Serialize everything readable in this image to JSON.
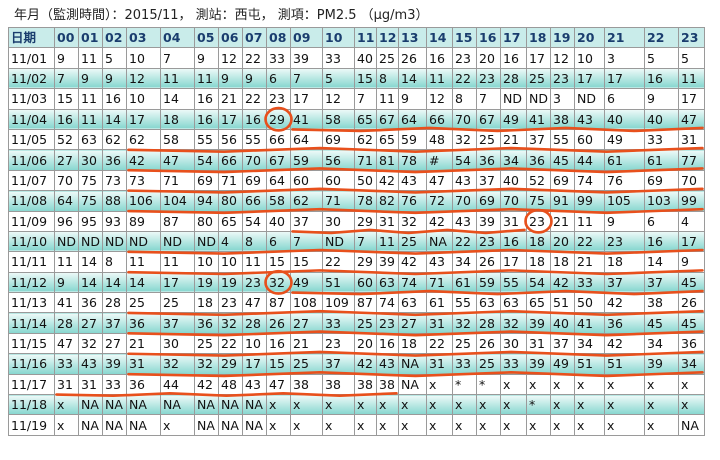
{
  "header": {
    "title": "年月（監測時間）：2015/11， 測站：西屯， 測項：PM2.5 （μg/m3）"
  },
  "table": {
    "columns": [
      "日期",
      "00",
      "01",
      "02",
      "03",
      "04",
      "05",
      "06",
      "07",
      "08",
      "09",
      "10",
      "11",
      "12",
      "13",
      "14",
      "15",
      "16",
      "17",
      "18",
      "19",
      "20",
      "21",
      "22",
      "23"
    ],
    "rows": [
      [
        "11/01",
        "9",
        "11",
        "5",
        "10",
        "7",
        "9",
        "12",
        "22",
        "33",
        "39",
        "33",
        "40",
        "25",
        "26",
        "16",
        "23",
        "20",
        "16",
        "17",
        "12",
        "10",
        "3",
        "5",
        "5"
      ],
      [
        "11/02",
        "7",
        "9",
        "9",
        "12",
        "11",
        "11",
        "9",
        "9",
        "6",
        "7",
        "5",
        "15",
        "8",
        "14",
        "11",
        "22",
        "23",
        "28",
        "25",
        "23",
        "17",
        "17",
        "16",
        "11"
      ],
      [
        "11/03",
        "15",
        "11",
        "16",
        "10",
        "14",
        "16",
        "21",
        "22",
        "23",
        "17",
        "12",
        "7",
        "11",
        "9",
        "12",
        "8",
        "7",
        "ND",
        "ND",
        "3",
        "ND",
        "6",
        "9",
        "17"
      ],
      [
        "11/04",
        "16",
        "11",
        "14",
        "17",
        "18",
        "16",
        "17",
        "16",
        "29",
        "41",
        "58",
        "65",
        "67",
        "64",
        "66",
        "70",
        "67",
        "49",
        "41",
        "38",
        "43",
        "40",
        "40",
        "47"
      ],
      [
        "11/05",
        "52",
        "63",
        "62",
        "62",
        "58",
        "55",
        "56",
        "55",
        "66",
        "64",
        "69",
        "62",
        "65",
        "59",
        "48",
        "32",
        "25",
        "21",
        "37",
        "55",
        "60",
        "49",
        "33",
        "31"
      ],
      [
        "11/06",
        "27",
        "30",
        "36",
        "42",
        "47",
        "54",
        "66",
        "70",
        "67",
        "59",
        "56",
        "71",
        "81",
        "78",
        "#",
        "54",
        "36",
        "34",
        "36",
        "45",
        "44",
        "61",
        "61",
        "77"
      ],
      [
        "11/07",
        "70",
        "75",
        "73",
        "73",
        "71",
        "69",
        "71",
        "69",
        "64",
        "60",
        "60",
        "50",
        "42",
        "43",
        "47",
        "43",
        "37",
        "40",
        "52",
        "69",
        "74",
        "76",
        "69",
        "70"
      ],
      [
        "11/08",
        "64",
        "75",
        "88",
        "106",
        "104",
        "94",
        "80",
        "66",
        "58",
        "62",
        "71",
        "78",
        "82",
        "76",
        "72",
        "70",
        "69",
        "70",
        "75",
        "91",
        "99",
        "105",
        "103",
        "99"
      ],
      [
        "11/09",
        "96",
        "95",
        "93",
        "89",
        "87",
        "80",
        "65",
        "54",
        "40",
        "37",
        "30",
        "29",
        "31",
        "32",
        "42",
        "43",
        "39",
        "31",
        "23",
        "21",
        "11",
        "9",
        "6",
        "4"
      ],
      [
        "11/10",
        "ND",
        "ND",
        "ND",
        "ND",
        "ND",
        "ND",
        "4",
        "8",
        "6",
        "7",
        "ND",
        "7",
        "11",
        "25",
        "NA",
        "22",
        "23",
        "16",
        "18",
        "20",
        "22",
        "23",
        "16",
        "17"
      ],
      [
        "11/11",
        "11",
        "14",
        "8",
        "11",
        "11",
        "10",
        "10",
        "11",
        "15",
        "15",
        "22",
        "29",
        "39",
        "42",
        "43",
        "34",
        "26",
        "17",
        "18",
        "18",
        "21",
        "18",
        "14",
        "9"
      ],
      [
        "11/12",
        "9",
        "14",
        "14",
        "14",
        "17",
        "19",
        "19",
        "23",
        "32",
        "49",
        "51",
        "60",
        "63",
        "74",
        "71",
        "61",
        "59",
        "55",
        "54",
        "42",
        "33",
        "37",
        "37",
        "45"
      ],
      [
        "11/13",
        "41",
        "36",
        "28",
        "25",
        "25",
        "18",
        "23",
        "47",
        "87",
        "108",
        "109",
        "87",
        "74",
        "63",
        "61",
        "55",
        "63",
        "63",
        "65",
        "51",
        "50",
        "42",
        "38",
        "26"
      ],
      [
        "11/14",
        "28",
        "27",
        "37",
        "36",
        "37",
        "36",
        "32",
        "28",
        "26",
        "27",
        "33",
        "25",
        "23",
        "27",
        "31",
        "32",
        "28",
        "32",
        "39",
        "40",
        "41",
        "36",
        "45",
        "45"
      ],
      [
        "11/15",
        "47",
        "32",
        "27",
        "21",
        "30",
        "25",
        "22",
        "10",
        "16",
        "21",
        "23",
        "20",
        "16",
        "18",
        "22",
        "25",
        "26",
        "30",
        "31",
        "37",
        "34",
        "42",
        "34",
        "36"
      ],
      [
        "11/16",
        "33",
        "43",
        "39",
        "31",
        "32",
        "32",
        "29",
        "17",
        "15",
        "25",
        "37",
        "42",
        "43",
        "NA",
        "31",
        "33",
        "25",
        "33",
        "39",
        "49",
        "51",
        "51",
        "39",
        "34"
      ],
      [
        "11/17",
        "31",
        "31",
        "33",
        "36",
        "44",
        "42",
        "48",
        "43",
        "47",
        "38",
        "38",
        "38",
        "38",
        "NA",
        "x",
        "*",
        "*",
        "x",
        "x",
        "x",
        "x",
        "x",
        "x",
        "x"
      ],
      [
        "11/18",
        "x",
        "NA",
        "NA",
        "NA",
        "NA",
        "NA",
        "NA",
        "NA",
        "x",
        "x",
        "x",
        "x",
        "x",
        "x",
        "x",
        "x",
        "x",
        "x",
        "*",
        "x",
        "x",
        "x",
        "x",
        "x"
      ],
      [
        "11/19",
        "x",
        "NA",
        "NA",
        "NA",
        "x",
        "NA",
        "NA",
        "NA",
        "x",
        "x",
        "x",
        "x",
        "x",
        "x",
        "x",
        "x",
        "x",
        "x",
        "x",
        "x",
        "x",
        "x",
        "x",
        "NA"
      ]
    ]
  }
}
